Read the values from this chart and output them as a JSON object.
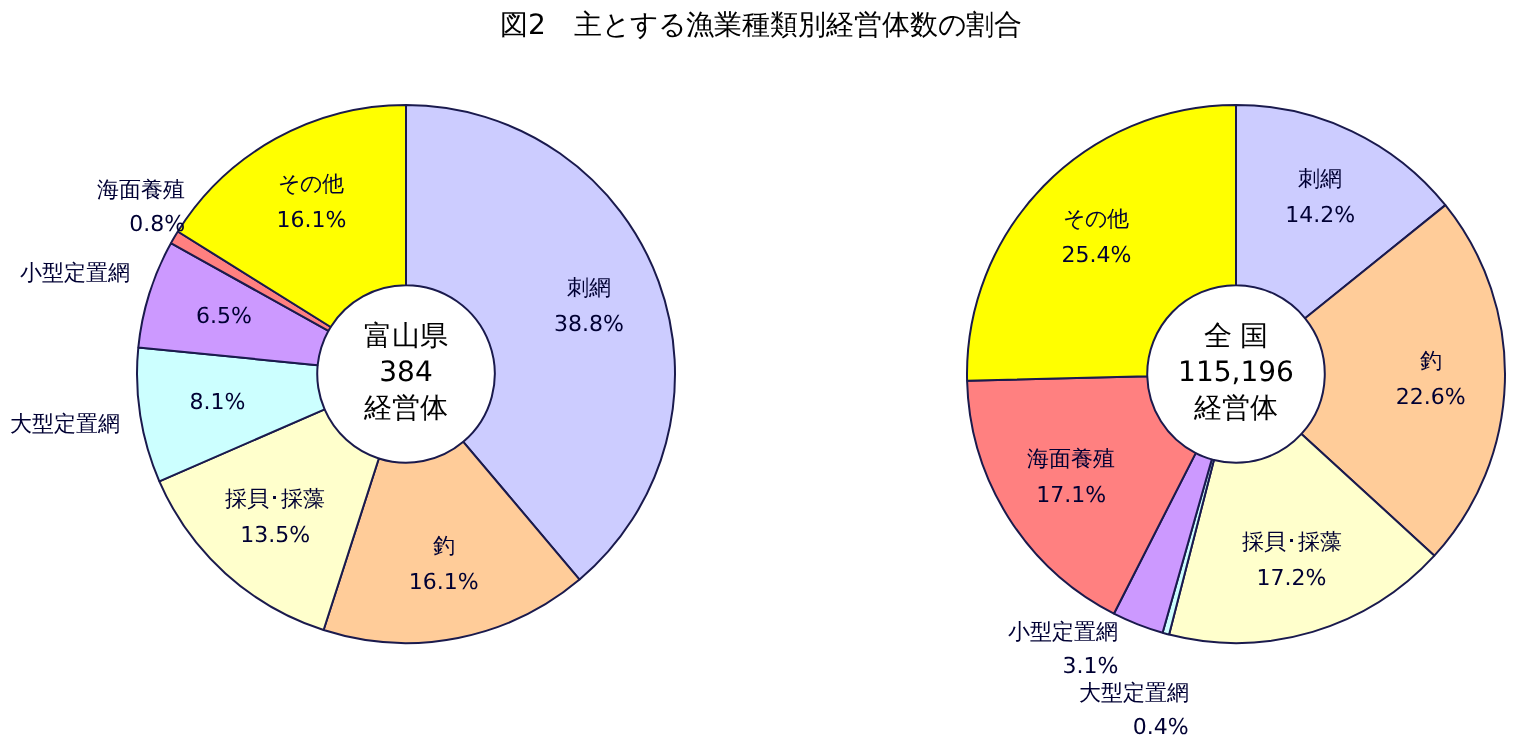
{
  "chart_data": [
    {
      "type": "donut",
      "title": "図2　主とする漁業種類別経営体数の割合",
      "categories": [
        "刺網",
        "釣",
        "採貝･採藻",
        "大型定置網",
        "小型定置網",
        "海面養殖",
        "その他"
      ],
      "values": [
        38.8,
        16.1,
        13.5,
        8.1,
        6.5,
        0.8,
        16.1
      ],
      "value_labels": [
        "38.8%",
        "16.1%",
        "13.5%",
        "8.1%",
        "6.5%",
        "0.8%",
        "16.1%"
      ],
      "colors": [
        "#ccccff",
        "#ffcc99",
        "#ffffcc",
        "#ccffff",
        "#cc99ff",
        "#ff8080",
        "#ffff00"
      ],
      "annotations": [
        "富山県",
        "384",
        "経営体"
      ],
      "legend": false
    },
    {
      "type": "donut",
      "categories": [
        "刺網",
        "釣",
        "採貝･採藻",
        "大型定置網",
        "小型定置網",
        "海面養殖",
        "その他"
      ],
      "values": [
        14.2,
        22.6,
        17.2,
        0.4,
        3.1,
        17.1,
        25.4
      ],
      "value_labels": [
        "14.2%",
        "22.6%",
        "17.2%",
        "0.4%",
        "3.1%",
        "17.1%",
        "25.4%"
      ],
      "colors": [
        "#ccccff",
        "#ffcc99",
        "#ffffcc",
        "#ccffff",
        "#cc99ff",
        "#ff8080",
        "#ffff00"
      ],
      "annotations": [
        "全 国",
        "115,196",
        "経営体"
      ],
      "legend": false
    }
  ]
}
